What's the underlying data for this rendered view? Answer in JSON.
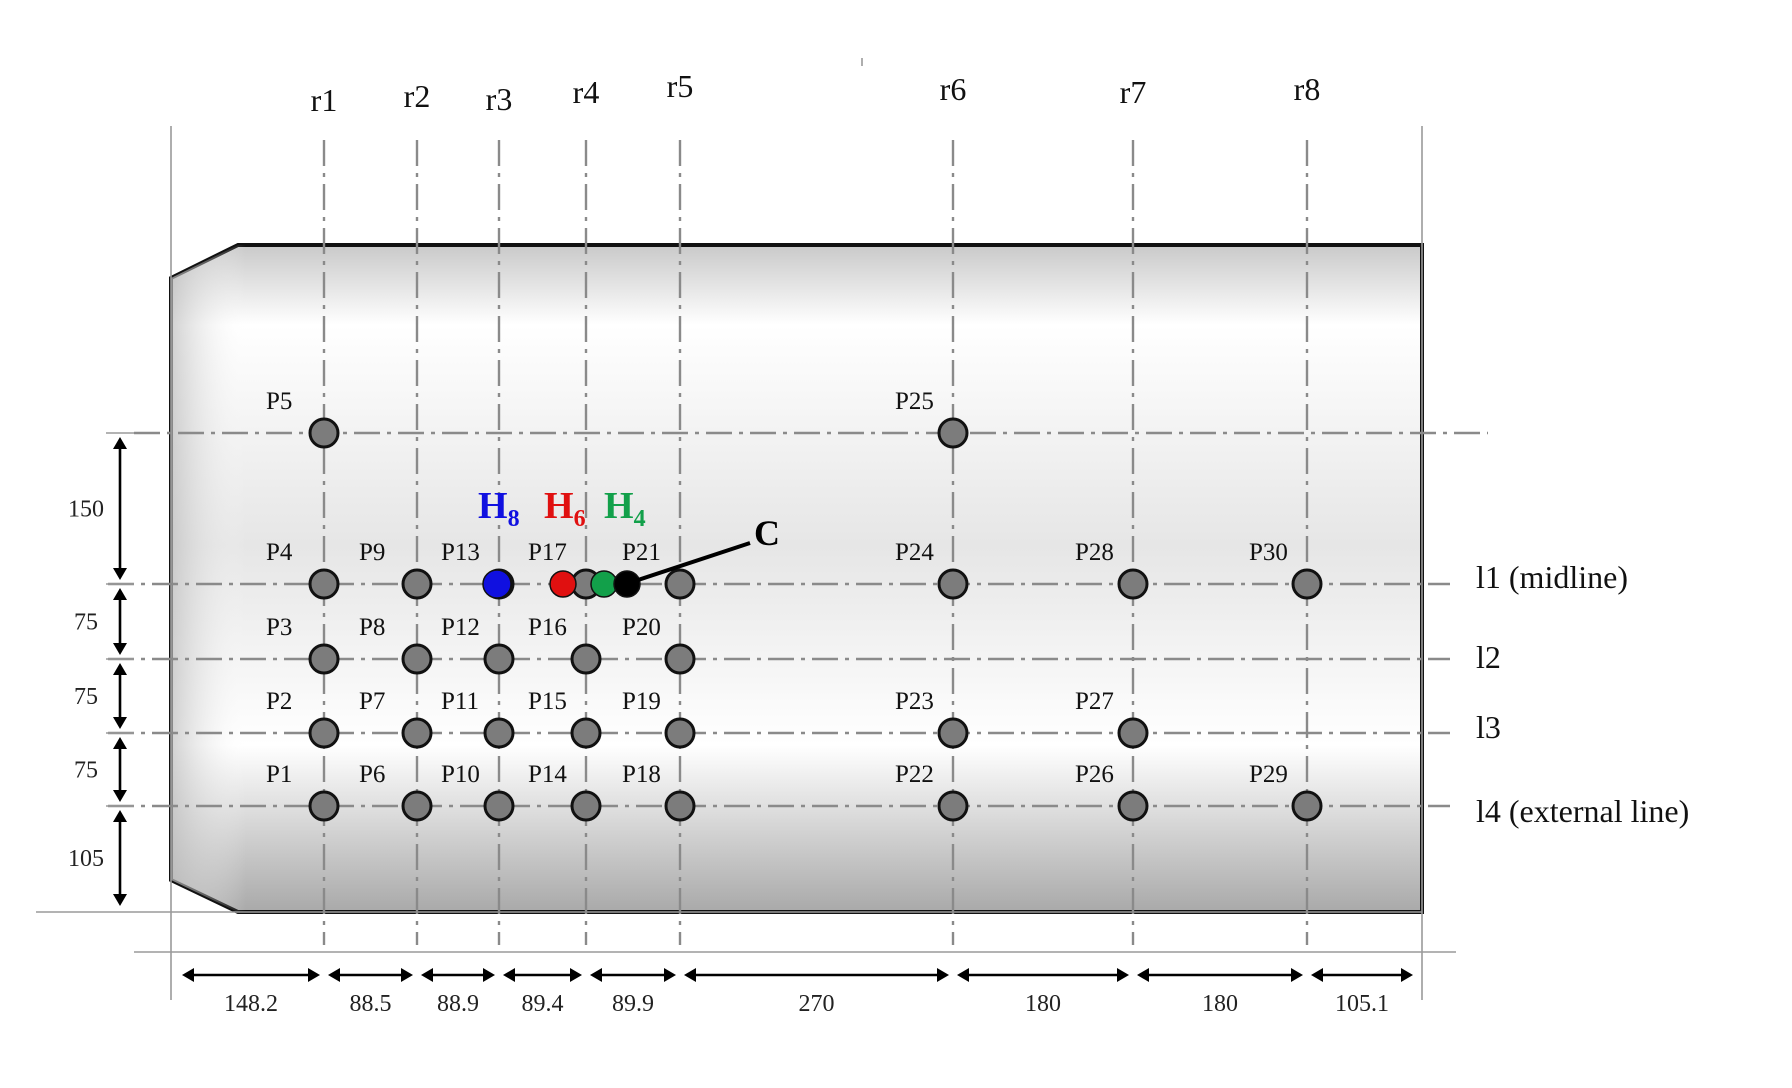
{
  "columns": [
    {
      "label": "r1",
      "tag": "r1"
    },
    {
      "label": "r2",
      "tag": "r2"
    },
    {
      "label": "r3",
      "tag": "r3"
    },
    {
      "label": "r4",
      "tag": "r4"
    },
    {
      "label": "r5",
      "tag": "r5"
    },
    {
      "label": "r6",
      "tag": "r6"
    },
    {
      "label": "r7",
      "tag": "r7"
    },
    {
      "label": "r8",
      "tag": "r8"
    }
  ],
  "rows": [
    {
      "label": "l1 (midline)",
      "tag": "l1"
    },
    {
      "label": "l2",
      "tag": "l2"
    },
    {
      "label": "l3",
      "tag": "l3"
    },
    {
      "label": "l4 (external line)",
      "tag": "l4"
    }
  ],
  "points": [
    {
      "label": "P1",
      "col": "r1",
      "row": "l4"
    },
    {
      "label": "P2",
      "col": "r1",
      "row": "l3"
    },
    {
      "label": "P3",
      "col": "r1",
      "row": "l2"
    },
    {
      "label": "P4",
      "col": "r1",
      "row": "l1"
    },
    {
      "label": "P5",
      "col": "r1",
      "row": "top"
    },
    {
      "label": "P6",
      "col": "r2",
      "row": "l4"
    },
    {
      "label": "P7",
      "col": "r2",
      "row": "l3"
    },
    {
      "label": "P8",
      "col": "r2",
      "row": "l2"
    },
    {
      "label": "P9",
      "col": "r2",
      "row": "l1"
    },
    {
      "label": "P10",
      "col": "r3",
      "row": "l4"
    },
    {
      "label": "P11",
      "col": "r3",
      "row": "l3"
    },
    {
      "label": "P12",
      "col": "r3",
      "row": "l2"
    },
    {
      "label": "P13",
      "col": "r3",
      "row": "l1"
    },
    {
      "label": "P14",
      "col": "r4",
      "row": "l4"
    },
    {
      "label": "P15",
      "col": "r4",
      "row": "l3"
    },
    {
      "label": "P16",
      "col": "r4",
      "row": "l2"
    },
    {
      "label": "P17",
      "col": "r4",
      "row": "l1"
    },
    {
      "label": "P18",
      "col": "r5",
      "row": "l4"
    },
    {
      "label": "P19",
      "col": "r5",
      "row": "l3"
    },
    {
      "label": "P20",
      "col": "r5",
      "row": "l2"
    },
    {
      "label": "P21",
      "col": "r5",
      "row": "l1"
    },
    {
      "label": "P22",
      "col": "r6",
      "row": "l4"
    },
    {
      "label": "P23",
      "col": "r6",
      "row": "l3"
    },
    {
      "label": "P24",
      "col": "r6",
      "row": "l1"
    },
    {
      "label": "P25",
      "col": "r6",
      "row": "top"
    },
    {
      "label": "P26",
      "col": "r7",
      "row": "l4"
    },
    {
      "label": "P27",
      "col": "r7",
      "row": "l3"
    },
    {
      "label": "P28",
      "col": "r7",
      "row": "l1"
    },
    {
      "label": "P29",
      "col": "r8",
      "row": "l4"
    },
    {
      "label": "P30",
      "col": "r8",
      "row": "l1"
    }
  ],
  "holes": [
    {
      "base": "H",
      "sub": "8",
      "color": "#1010e0"
    },
    {
      "base": "H",
      "sub": "6",
      "color": "#e01010"
    },
    {
      "base": "H",
      "sub": "4",
      "color": "#12a04a"
    }
  ],
  "center_label": "C",
  "center_color": "#000000",
  "pin_color": "#7c7c7c",
  "horizontal_dimensions": [
    "148.2",
    "88.5",
    "88.9",
    "89.4",
    "89.9",
    "270",
    "180",
    "180",
    "105.1"
  ],
  "vertical_dimensions": [
    "150",
    "75",
    "75",
    "75",
    "105"
  ]
}
